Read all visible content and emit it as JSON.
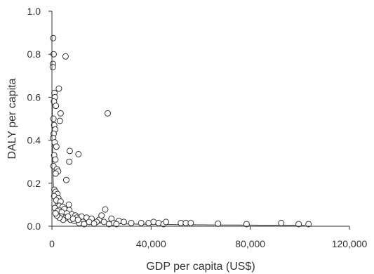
{
  "chart_data": {
    "type": "scatter",
    "xlabel": "GDP per capita (US$)",
    "ylabel": "DALY per capita",
    "xlim": [
      0,
      120000
    ],
    "ylim": [
      0,
      1.0
    ],
    "x_ticks": [
      0,
      40000,
      80000,
      120000
    ],
    "x_tick_labels": [
      "0",
      "40,000",
      "80,000",
      "120,000"
    ],
    "y_ticks": [
      0,
      0.2,
      0.4,
      0.6,
      0.8,
      1.0
    ],
    "y_tick_labels": [
      "0.0",
      "0.2",
      "0.4",
      "0.6",
      "0.8",
      "1.0"
    ],
    "grid": false,
    "marker": "open-circle",
    "trendline": "power-fit",
    "points": [
      [
        500,
        0.875
      ],
      [
        700,
        0.8
      ],
      [
        400,
        0.755
      ],
      [
        350,
        0.74
      ],
      [
        5500,
        0.79
      ],
      [
        2800,
        0.64
      ],
      [
        1000,
        0.62
      ],
      [
        1200,
        0.6
      ],
      [
        800,
        0.58
      ],
      [
        1600,
        0.56
      ],
      [
        3500,
        0.525
      ],
      [
        22500,
        0.525
      ],
      [
        3200,
        0.49
      ],
      [
        600,
        0.5
      ],
      [
        900,
        0.47
      ],
      [
        1300,
        0.45
      ],
      [
        700,
        0.43
      ],
      [
        500,
        0.41
      ],
      [
        1100,
        0.39
      ],
      [
        1800,
        0.37
      ],
      [
        7200,
        0.35
      ],
      [
        10700,
        0.335
      ],
      [
        900,
        0.33
      ],
      [
        1400,
        0.31
      ],
      [
        7000,
        0.3
      ],
      [
        600,
        0.28
      ],
      [
        2000,
        0.265
      ],
      [
        2500,
        0.255
      ],
      [
        1500,
        0.245
      ],
      [
        5800,
        0.215
      ],
      [
        1000,
        0.17
      ],
      [
        1500,
        0.16
      ],
      [
        2200,
        0.15
      ],
      [
        900,
        0.14
      ],
      [
        2600,
        0.13
      ],
      [
        1800,
        0.12
      ],
      [
        3500,
        0.115
      ],
      [
        6800,
        0.1
      ],
      [
        3000,
        0.095
      ],
      [
        4300,
        0.09
      ],
      [
        1200,
        0.085
      ],
      [
        5000,
        0.08
      ],
      [
        2800,
        0.075
      ],
      [
        7000,
        0.075
      ],
      [
        21500,
        0.078
      ],
      [
        2300,
        0.07
      ],
      [
        4000,
        0.065
      ],
      [
        6000,
        0.06
      ],
      [
        8000,
        0.055
      ],
      [
        9500,
        0.05
      ],
      [
        12000,
        0.045
      ],
      [
        3800,
        0.045
      ],
      [
        5500,
        0.04
      ],
      [
        10000,
        0.04
      ],
      [
        14000,
        0.04
      ],
      [
        16000,
        0.035
      ],
      [
        19000,
        0.03
      ],
      [
        24000,
        0.035
      ],
      [
        27000,
        0.025
      ],
      [
        7500,
        0.03
      ],
      [
        9000,
        0.025
      ],
      [
        12500,
        0.02
      ],
      [
        15000,
        0.02
      ],
      [
        18000,
        0.02
      ],
      [
        21000,
        0.02
      ],
      [
        25000,
        0.015
      ],
      [
        29000,
        0.02
      ],
      [
        32000,
        0.015
      ],
      [
        36000,
        0.015
      ],
      [
        39000,
        0.015
      ],
      [
        41000,
        0.02
      ],
      [
        43000,
        0.015
      ],
      [
        45000,
        0.01
      ],
      [
        46000,
        0.02
      ],
      [
        52000,
        0.015
      ],
      [
        54000,
        0.015
      ],
      [
        56000,
        0.015
      ],
      [
        67000,
        0.012
      ],
      [
        78500,
        0.01
      ],
      [
        92500,
        0.015
      ],
      [
        99500,
        0.01
      ],
      [
        103500,
        0.01
      ],
      [
        11000,
        0.015
      ],
      [
        13000,
        0.01
      ],
      [
        17000,
        0.012
      ],
      [
        23000,
        0.01
      ],
      [
        26000,
        0.01
      ],
      [
        4500,
        0.03
      ],
      [
        3000,
        0.04
      ],
      [
        2000,
        0.05
      ],
      [
        1500,
        0.06
      ],
      [
        6500,
        0.045
      ],
      [
        8500,
        0.035
      ],
      [
        10500,
        0.03
      ],
      [
        20000,
        0.05
      ]
    ]
  }
}
